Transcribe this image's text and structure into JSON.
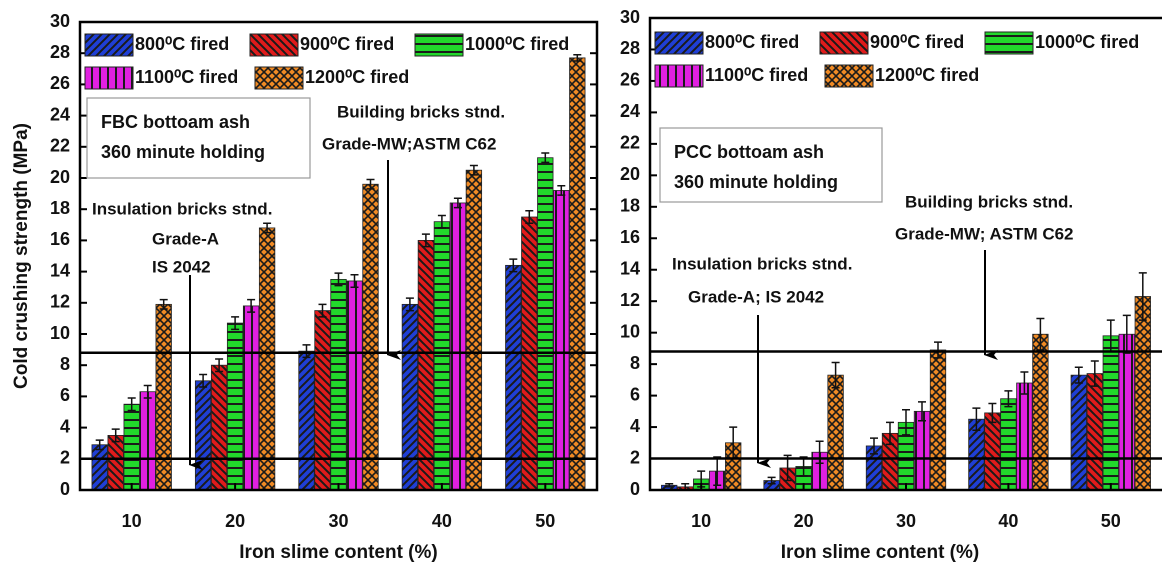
{
  "chart_data": [
    {
      "type": "bar",
      "y_label": "Cold crushing strength (MPa)",
      "x_label": "Iron slime content (%)",
      "categories": [
        "10",
        "20",
        "30",
        "40",
        "50"
      ],
      "series": [
        {
          "name": "800⁰C fired",
          "color": "#1f3fd6",
          "hatch": "/",
          "values": [
            2.9,
            7.0,
            8.9,
            11.9,
            14.4
          ],
          "errors": [
            0.3,
            0.4,
            0.4,
            0.4,
            0.4
          ]
        },
        {
          "name": "900⁰C fired",
          "color": "#e01b1b",
          "hatch": "\\",
          "values": [
            3.5,
            8.0,
            11.5,
            16.0,
            17.5
          ],
          "errors": [
            0.4,
            0.4,
            0.4,
            0.4,
            0.4
          ]
        },
        {
          "name": "1000⁰C fired",
          "color": "#22d82b",
          "hatch": "-",
          "values": [
            5.5,
            10.7,
            13.5,
            17.2,
            21.3
          ],
          "errors": [
            0.4,
            0.4,
            0.4,
            0.4,
            0.3
          ]
        },
        {
          "name": "1100⁰C fired",
          "color": "#e020e0",
          "hatch": "|",
          "values": [
            6.3,
            11.8,
            13.4,
            18.4,
            19.2
          ],
          "errors": [
            0.4,
            0.4,
            0.4,
            0.3,
            0.3
          ]
        },
        {
          "name": "1200⁰C fired",
          "color": "#f08a24",
          "hatch": "x",
          "values": [
            11.9,
            16.8,
            19.6,
            20.5,
            27.7
          ],
          "errors": [
            0.3,
            0.3,
            0.3,
            0.3,
            0.2
          ]
        }
      ],
      "ylim": [
        0,
        30
      ],
      "yticks": [
        0,
        2,
        4,
        6,
        8,
        10,
        12,
        14,
        16,
        18,
        20,
        22,
        24,
        26,
        28,
        30
      ],
      "hlines": [
        8.8,
        2
      ],
      "box_text": [
        "FBC bottoam ash",
        "360 minute holding"
      ],
      "annotations": [
        "Building bricks stnd.",
        "Grade-MW;ASTM C62",
        "Insulation bricks stnd.",
        "Grade-A",
        "IS 2042"
      ]
    },
    {
      "type": "bar",
      "x_label": "Iron slime content (%)",
      "categories": [
        "10",
        "20",
        "30",
        "40",
        "50"
      ],
      "series": [
        {
          "name": "800⁰C fired",
          "color": "#1f3fd6",
          "hatch": "/",
          "values": [
            0.3,
            0.6,
            2.8,
            4.5,
            7.3
          ],
          "errors": [
            0.1,
            0.2,
            0.5,
            0.7,
            0.5
          ]
        },
        {
          "name": "900⁰C fired",
          "color": "#e01b1b",
          "hatch": "\\",
          "values": [
            0.2,
            1.4,
            3.6,
            4.9,
            7.4
          ],
          "errors": [
            0.2,
            0.8,
            0.7,
            0.6,
            0.8
          ]
        },
        {
          "name": "1000⁰C fired",
          "color": "#22d82b",
          "hatch": "-",
          "values": [
            0.7,
            1.5,
            4.3,
            5.8,
            9.8
          ],
          "errors": [
            0.5,
            0.6,
            0.8,
            0.5,
            1.0
          ]
        },
        {
          "name": "1100⁰C fired",
          "color": "#e020e0",
          "hatch": "|",
          "values": [
            1.2,
            2.4,
            5.0,
            6.8,
            9.9
          ],
          "errors": [
            0.9,
            0.7,
            0.6,
            0.7,
            1.2
          ]
        },
        {
          "name": "1200⁰C fired",
          "color": "#f08a24",
          "hatch": "x",
          "values": [
            3.0,
            7.3,
            8.9,
            9.9,
            12.3
          ],
          "errors": [
            1.0,
            0.8,
            0.5,
            1.0,
            1.5
          ]
        }
      ],
      "ylim": [
        0,
        30
      ],
      "yticks": [
        0,
        2,
        4,
        6,
        8,
        10,
        12,
        14,
        16,
        18,
        20,
        22,
        24,
        26,
        28,
        30
      ],
      "hlines": [
        8.8,
        2
      ],
      "box_text": [
        "PCC bottoam ash",
        "360 minute holding"
      ],
      "annotations": [
        "Building bricks stnd.",
        "Grade-MW; ASTM C62",
        "Insulation bricks stnd.",
        "Grade-A; IS 2042"
      ]
    }
  ]
}
